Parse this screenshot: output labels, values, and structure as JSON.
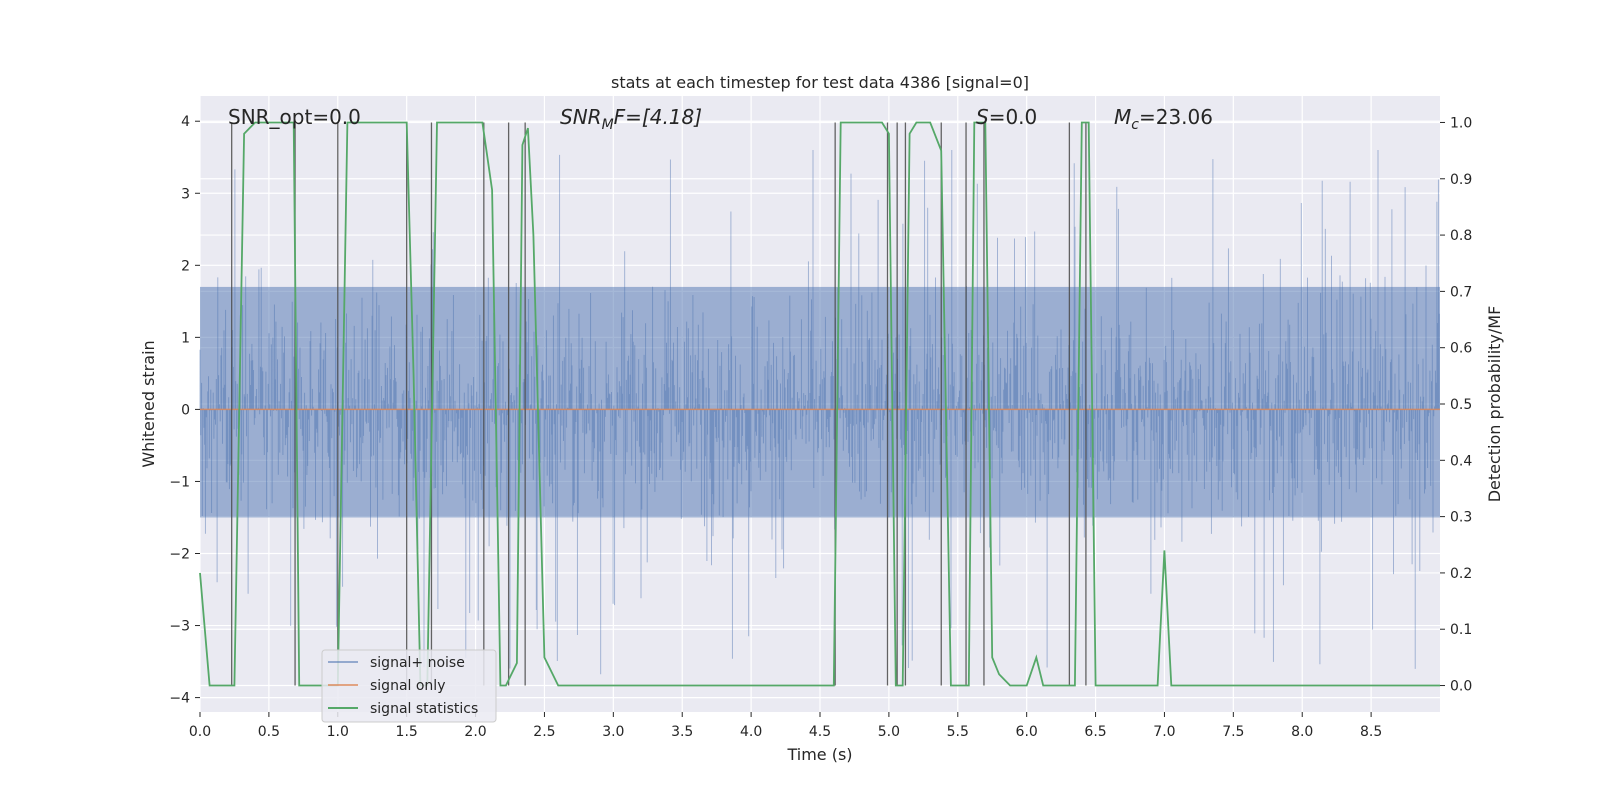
{
  "chart_data": {
    "type": "line",
    "title": "stats at each timestep for test data 4386 [signal=0]",
    "xlabel": "Time (s)",
    "ylabel": "Whitened strain",
    "y2label": "Detection probability/MF",
    "xlim": [
      0.0,
      9.0
    ],
    "ylim": [
      -4.2,
      4.35
    ],
    "y2lim": [
      -0.047,
      1.047
    ],
    "xticks": [
      "0.0",
      "0.5",
      "1.0",
      "1.5",
      "2.0",
      "2.5",
      "3.0",
      "3.5",
      "4.0",
      "4.5",
      "5.0",
      "5.5",
      "6.0",
      "6.5",
      "7.0",
      "7.5",
      "8.0",
      "8.5"
    ],
    "yticks": [
      "4",
      "3",
      "2",
      "1",
      "0",
      "−1",
      "−2",
      "−3",
      "−4"
    ],
    "y2ticks": [
      "1.0",
      "0.9",
      "0.8",
      "0.7",
      "0.6",
      "0.5",
      "0.4",
      "0.3",
      "0.2",
      "0.1",
      "0.0"
    ],
    "grid": true,
    "legend_position": "lower-left",
    "annotations": {
      "snr_opt": "SNR_opt=0.0",
      "snr_mf_prefix": "SNR",
      "snr_mf_sub": "M",
      "snr_mf_suffix": "F=[4.18]",
      "s_var": "S",
      "s_value": "=0.0",
      "mc_var": "M",
      "mc_sub": "c",
      "mc_value": "=23.06"
    },
    "series": [
      {
        "name": "signal+ noise",
        "color": "#4c72b0",
        "kind": "noise",
        "typical_range": [
          -1.5,
          1.7
        ],
        "extreme_range": [
          -3.8,
          3.6
        ]
      },
      {
        "name": "signal only",
        "color": "#dd8452",
        "kind": "flat",
        "value": 0.0
      },
      {
        "name": "signal statistics",
        "color": "#55a868",
        "axis": "right",
        "x": [
          0.0,
          0.07,
          0.25,
          0.32,
          0.4,
          0.5,
          0.6,
          0.68,
          0.72,
          1.0,
          1.07,
          1.3,
          1.5,
          1.55,
          1.6,
          1.65,
          1.72,
          2.05,
          2.12,
          2.18,
          2.22,
          2.3,
          2.34,
          2.38,
          2.42,
          2.5,
          2.6,
          2.7,
          3.0,
          4.0,
          4.5,
          4.6,
          4.65,
          4.95,
          5.0,
          5.05,
          5.1,
          5.15,
          5.2,
          5.3,
          5.38,
          5.45,
          5.58,
          5.62,
          5.7,
          5.75,
          5.8,
          5.88,
          6.0,
          6.07,
          6.12,
          6.3,
          6.35,
          6.4,
          6.45,
          6.5,
          6.9,
          6.95,
          7.0,
          7.05,
          7.1,
          9.0
        ],
        "y": [
          0.2,
          0.0,
          0.0,
          0.98,
          1.0,
          1.0,
          1.0,
          1.0,
          0.0,
          0.0,
          1.0,
          1.0,
          1.0,
          0.55,
          0.0,
          0.0,
          1.0,
          1.0,
          0.88,
          0.0,
          0.0,
          0.04,
          0.96,
          0.99,
          0.8,
          0.05,
          0.0,
          0.0,
          0.0,
          0.0,
          0.0,
          0.0,
          1.0,
          1.0,
          0.98,
          0.0,
          0.0,
          0.98,
          1.0,
          1.0,
          0.95,
          0.0,
          0.0,
          1.0,
          1.0,
          0.05,
          0.02,
          0.0,
          0.0,
          0.05,
          0.0,
          0.0,
          0.0,
          1.0,
          1.0,
          0.0,
          0.0,
          0.0,
          0.24,
          0.0,
          0.0,
          0.0
        ]
      }
    ],
    "vlines": [
      0.23,
      0.69,
      1.0,
      1.5,
      1.68,
      2.06,
      2.24,
      2.36,
      4.61,
      4.99,
      5.06,
      5.12,
      5.38,
      5.56,
      5.69,
      6.31,
      6.43
    ]
  }
}
